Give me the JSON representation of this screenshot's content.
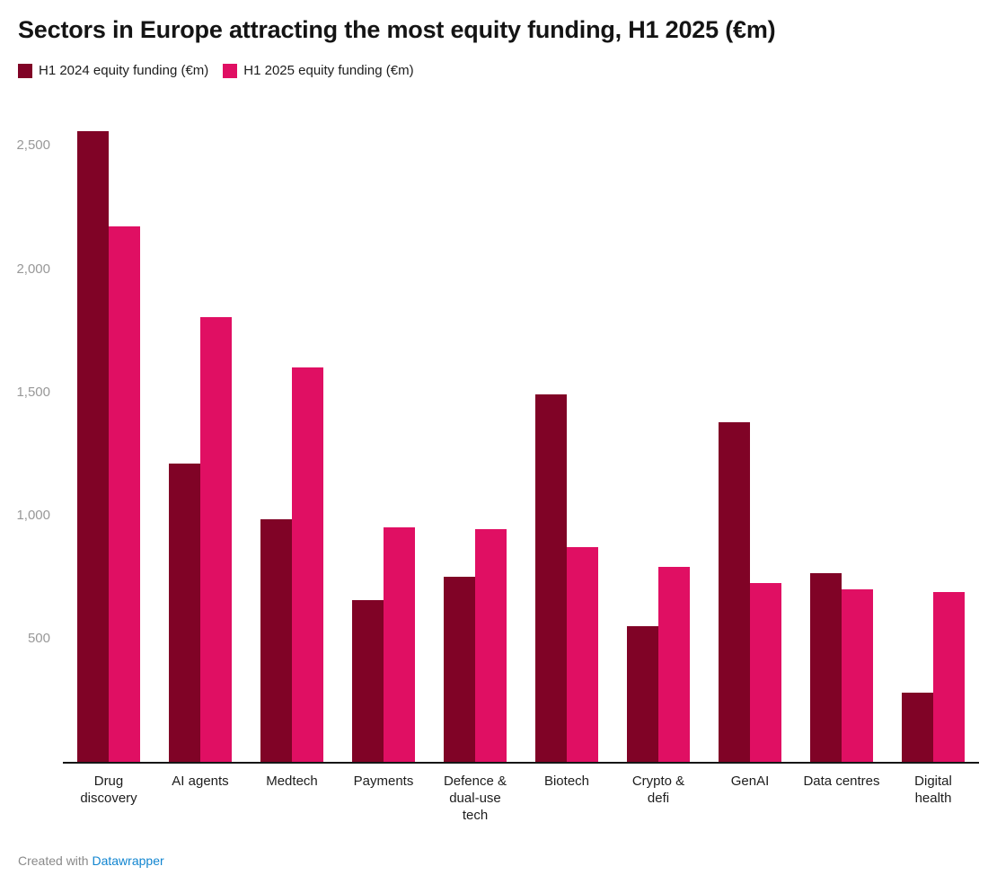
{
  "header": {
    "title": "Sectors in Europe attracting the most equity funding, H1 2025 (€m)"
  },
  "chart_data": {
    "type": "bar",
    "title": "Sectors in Europe attracting the most equity funding, H1 2025 (€m)",
    "categories": [
      "Drug discovery",
      "AI agents",
      "Medtech",
      "Payments",
      "Defence & dual-use tech",
      "Biotech",
      "Crypto & defi",
      "GenAI",
      "Data centres",
      "Digital health"
    ],
    "series": [
      {
        "name": "H1 2024 equity funding (€m)",
        "color": "#800326",
        "values": [
          2560,
          1210,
          985,
          655,
          750,
          1490,
          550,
          1380,
          765,
          280
        ]
      },
      {
        "name": "H1 2025 equity funding (€m)",
        "color": "#e00f63",
        "values": [
          2175,
          1805,
          1600,
          950,
          945,
          870,
          790,
          725,
          700,
          690
        ]
      }
    ],
    "xlabel": "",
    "ylabel": "",
    "ylim": [
      0,
      2600
    ],
    "yticks": [
      500,
      1000,
      1500,
      2000,
      2500
    ],
    "ytick_labels": [
      "500",
      "1,000",
      "1,500",
      "2,000",
      "2,500"
    ],
    "grid": false,
    "legend_position": "top-left"
  },
  "footer": {
    "created_with": "Created with",
    "link": "Datawrapper",
    "link_color": "#1185d0"
  }
}
